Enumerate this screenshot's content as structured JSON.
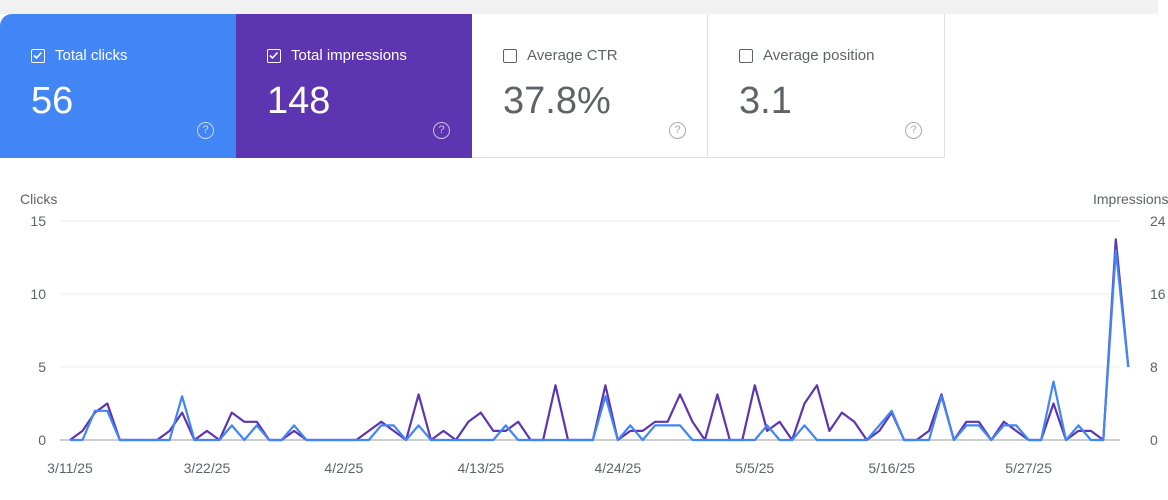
{
  "cards": [
    {
      "label": "Total clicks",
      "value": "56",
      "checked": true,
      "color": "#4285f4"
    },
    {
      "label": "Total impressions",
      "value": "148",
      "checked": true,
      "color": "#5e35b1"
    },
    {
      "label": "Average CTR",
      "value": "37.8%",
      "checked": false
    },
    {
      "label": "Average position",
      "value": "3.1",
      "checked": false
    }
  ],
  "chart_data": {
    "type": "line",
    "left_axis_label": "Clicks",
    "right_axis_label": "Impressions",
    "left_ylim": [
      0,
      15
    ],
    "right_ylim": [
      0,
      24
    ],
    "left_ticks": [
      "0",
      "5",
      "10",
      "15"
    ],
    "right_ticks": [
      "0",
      "8",
      "16",
      "24"
    ],
    "x_start": "3/11/25",
    "x_tick_labels": [
      "3/11/25",
      "3/22/25",
      "4/2/25",
      "4/13/25",
      "4/24/25",
      "5/5/25",
      "5/16/25",
      "5/27/25"
    ],
    "grid": true,
    "series": [
      {
        "name": "Clicks",
        "axis": "left",
        "color": "#4285f4",
        "values": [
          0,
          0,
          2,
          2,
          0,
          0,
          0,
          0,
          0,
          3,
          0,
          0,
          0,
          1,
          0,
          1,
          0,
          0,
          1,
          0,
          0,
          0,
          0,
          0,
          0,
          1,
          1,
          0,
          1,
          0,
          0,
          0,
          0,
          0,
          0,
          1,
          0,
          0,
          0,
          0,
          0,
          0,
          0,
          3,
          0,
          1,
          0,
          1,
          1,
          1,
          0,
          0,
          0,
          0,
          0,
          0,
          1,
          0,
          0,
          1,
          0,
          0,
          0,
          0,
          0,
          1,
          2,
          0,
          0,
          0,
          3,
          0,
          1,
          1,
          0,
          1,
          1,
          0,
          0,
          4,
          0,
          1,
          0,
          0,
          13,
          5
        ]
      },
      {
        "name": "Impressions",
        "axis": "right",
        "color": "#5e35b1",
        "values": [
          0,
          1,
          3,
          4,
          0,
          0,
          0,
          0,
          1,
          3,
          0,
          1,
          0,
          3,
          2,
          2,
          0,
          0,
          1,
          0,
          0,
          0,
          0,
          0,
          1,
          2,
          1,
          0,
          5,
          0,
          1,
          0,
          2,
          3,
          1,
          1,
          2,
          0,
          0,
          6,
          0,
          0,
          0,
          6,
          0,
          1,
          1,
          2,
          2,
          5,
          2,
          0,
          5,
          0,
          0,
          6,
          1,
          2,
          0,
          4,
          6,
          1,
          3,
          2,
          0,
          1,
          3,
          0,
          0,
          1,
          5,
          0,
          2,
          2,
          0,
          2,
          1,
          0,
          0,
          4,
          0,
          1,
          1,
          0,
          22,
          8
        ]
      }
    ]
  }
}
